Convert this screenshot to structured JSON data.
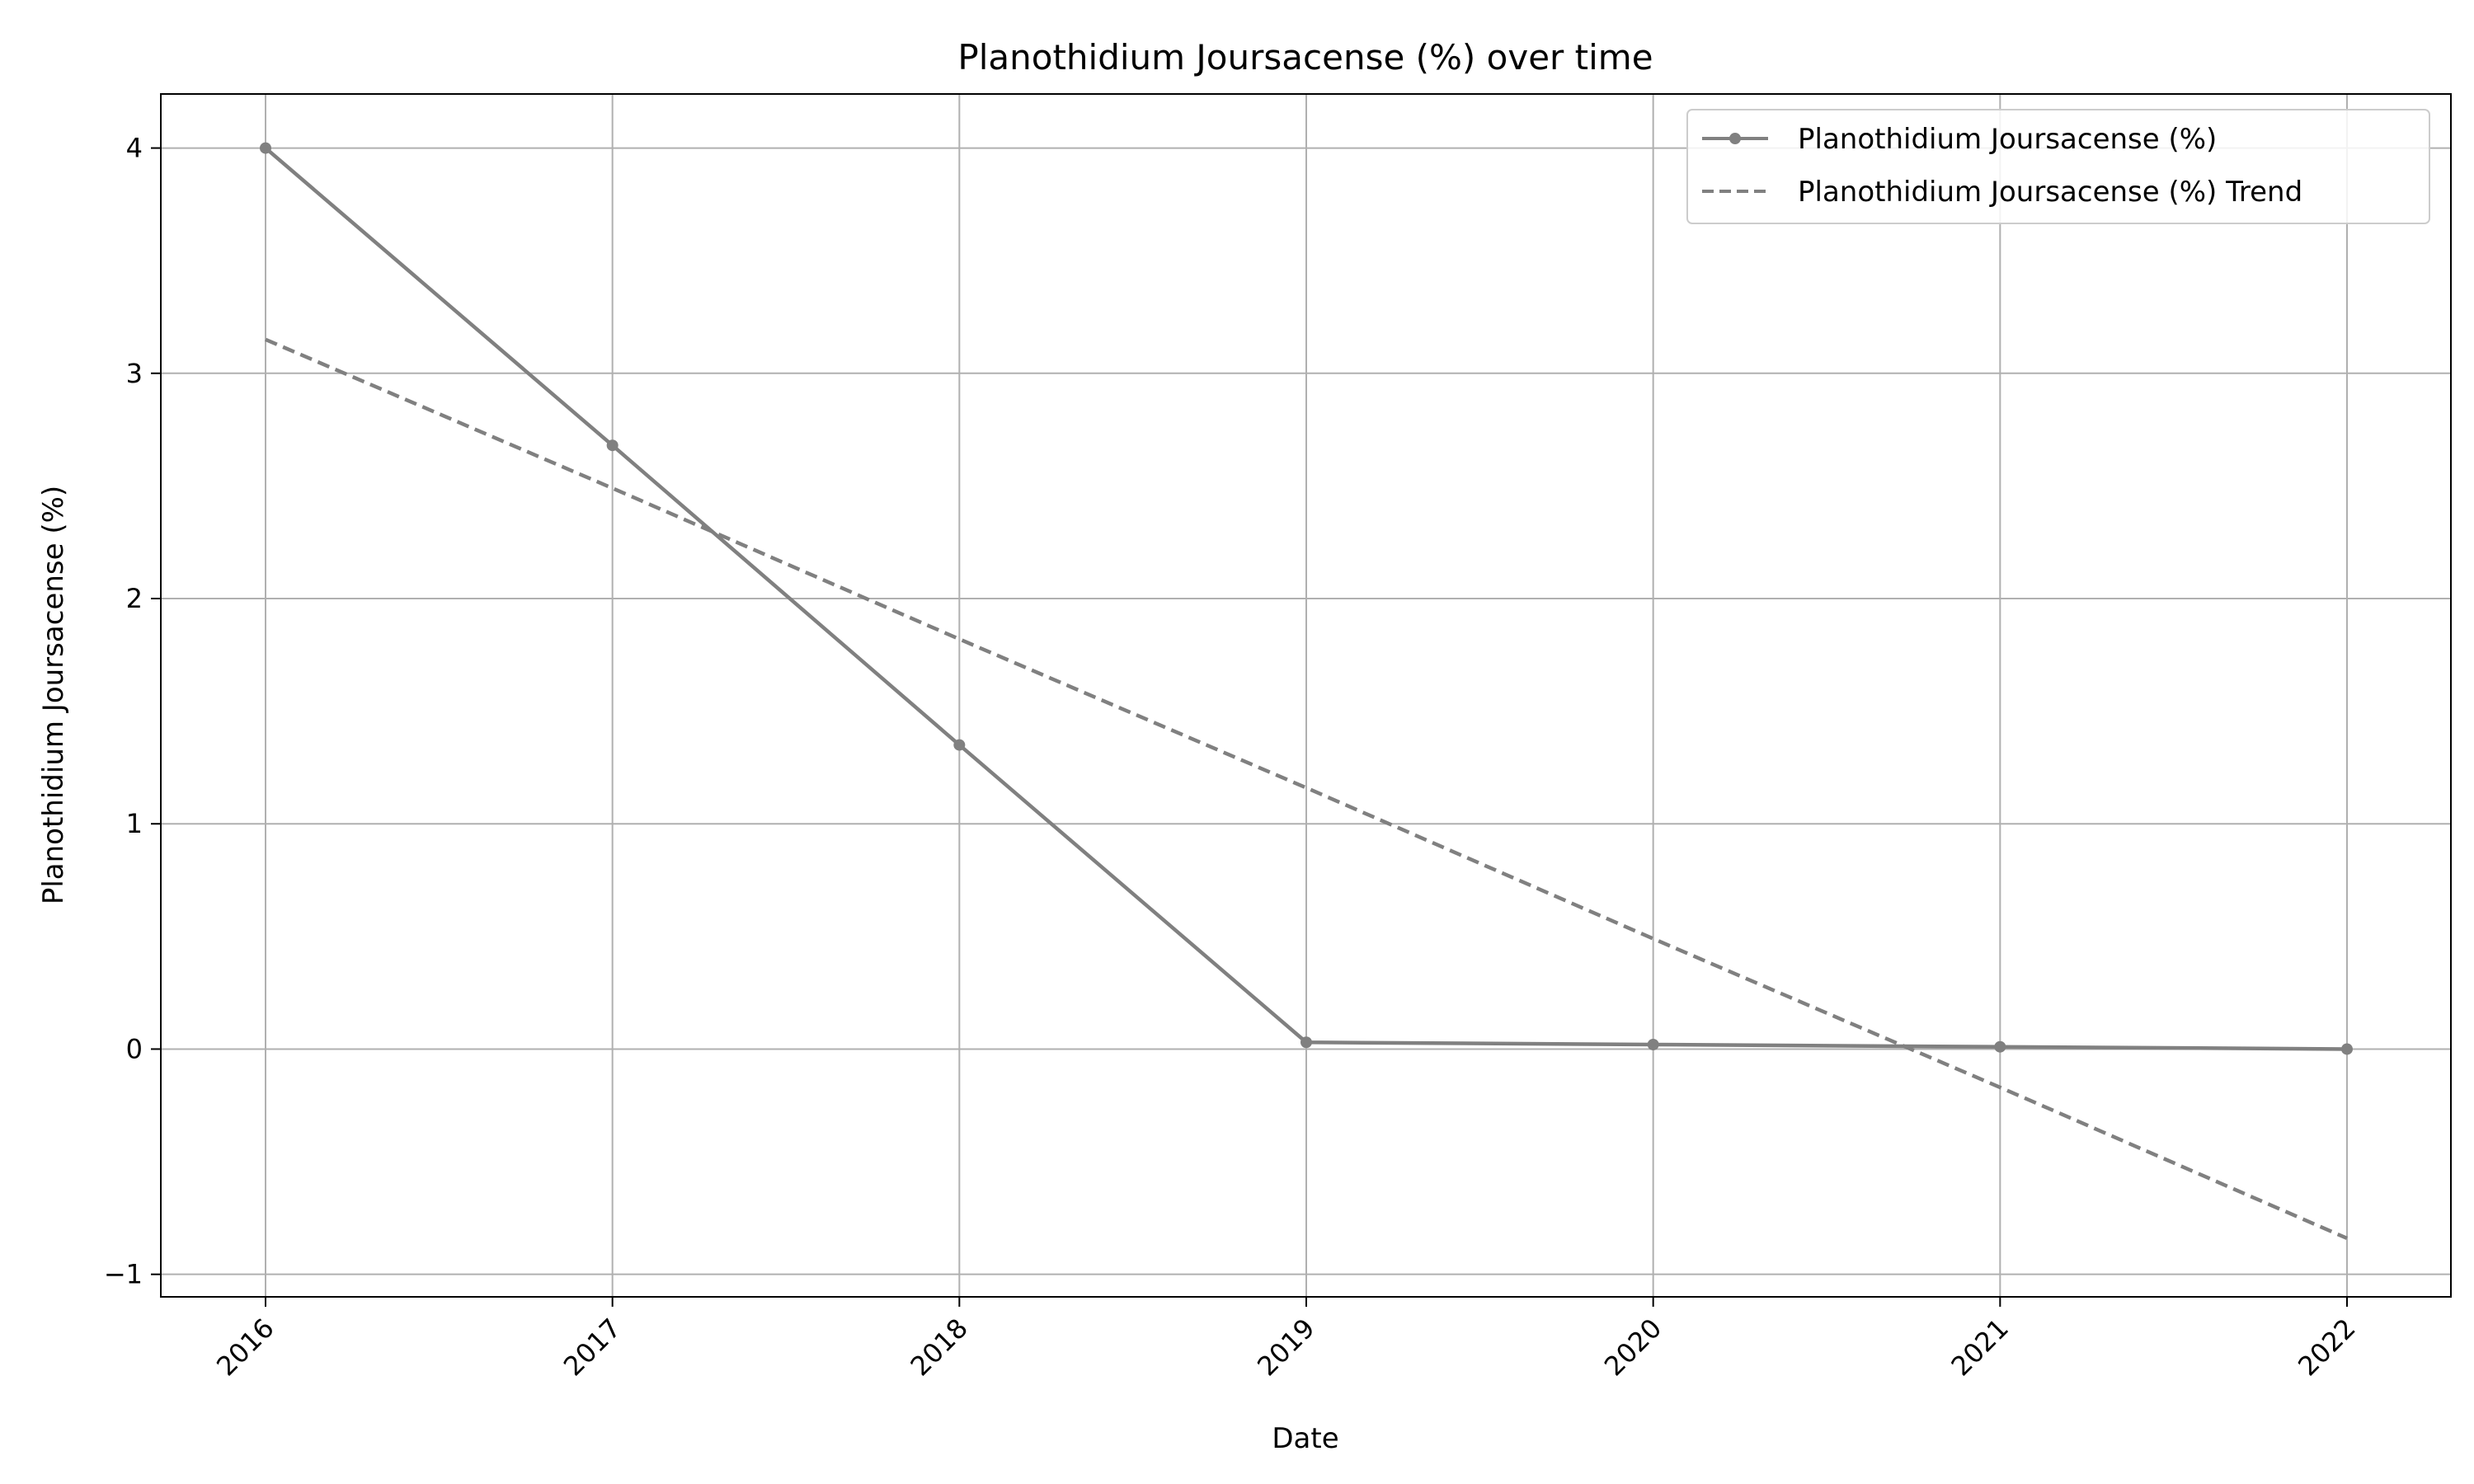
{
  "chart_data": {
    "type": "line",
    "title": "Planothidium Joursacense (%) over time",
    "xlabel": "Date",
    "ylabel": "Planothidium Joursacense (%)",
    "x": [
      "2016",
      "2017",
      "2018",
      "2019",
      "2020",
      "2021",
      "2022"
    ],
    "xticks": [
      "2016",
      "2017",
      "2018",
      "2019",
      "2020",
      "2021",
      "2022"
    ],
    "yticks": [
      "−1",
      "0",
      "1",
      "2",
      "3",
      "4"
    ],
    "ylim": [
      -1.1,
      4.24
    ],
    "grid": true,
    "legend_position": "top-right",
    "series": [
      {
        "name": "Planothidium Joursacense (%)",
        "values": [
          4.0,
          2.68,
          1.35,
          0.03,
          0.02,
          0.01,
          0.0
        ],
        "style": "solid-with-markers",
        "color": "#808080"
      },
      {
        "name": "Planothidium Joursacense (%) Trend",
        "values": [
          3.15,
          2.49,
          1.82,
          1.16,
          0.49,
          -0.17,
          -0.84
        ],
        "style": "dashed",
        "color": "#808080"
      }
    ]
  }
}
